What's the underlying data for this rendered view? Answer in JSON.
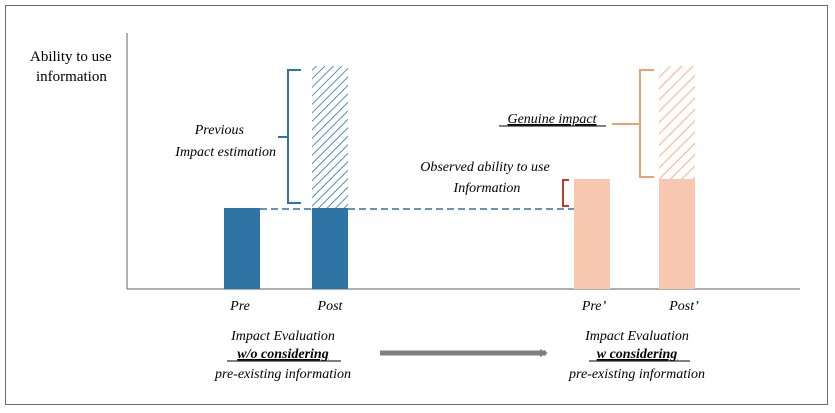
{
  "colors": {
    "blue": "#2e75a6",
    "peach": "#f7c7b0",
    "orange": "#f0a070",
    "red": "#c0392b",
    "axis": "#7f7f7f",
    "arrow": "#7f7f7f"
  },
  "axis": {
    "ylabel_line1": "Ability to use",
    "ylabel_line2": "information"
  },
  "left_panel": {
    "annotation_line1": "Previous",
    "annotation_line2": "Impact estimation",
    "bar_pre_label": "Pre",
    "bar_post_label": "Post",
    "caption_line1": "Impact Evaluation",
    "caption_line2": "w/o considering",
    "caption_line3": "pre-existing information"
  },
  "right_panel": {
    "genuine_label": "Genuine impact",
    "observed_line1": "Observed ability to use",
    "observed_line2": "Information",
    "bar_pre_label": "Pre’",
    "bar_post_label": "Post’",
    "caption_line1": "Impact Evaluation",
    "caption_line2": "w considering",
    "caption_line3": "pre-existing information"
  }
}
